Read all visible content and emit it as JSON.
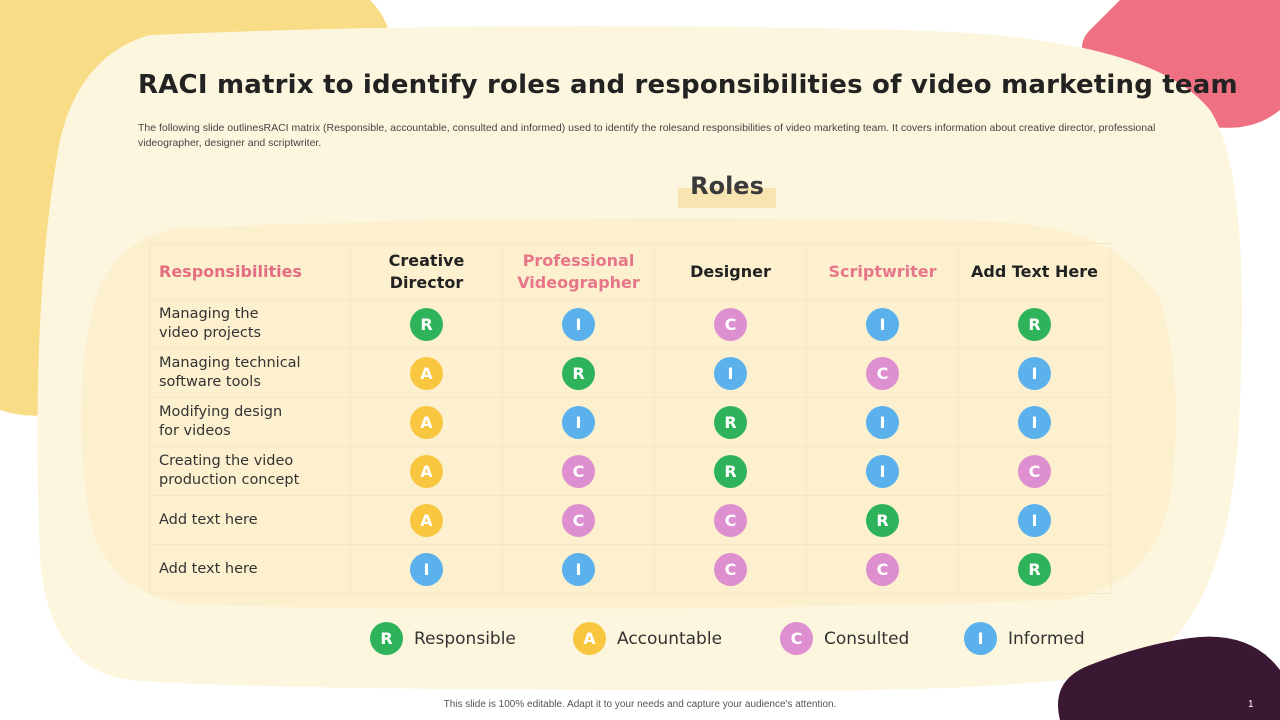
{
  "colors": {
    "responsible": "#2fb35a",
    "accountable": "#f9c640",
    "consulted": "#dd8fd0",
    "informed": "#5ab1ec",
    "accent_pink": "#e8768a",
    "cream": "#fdf6df",
    "yellow_blob": "#f9dc86",
    "pink_blob": "#ef7082",
    "dark_blob": "#3a1833"
  },
  "slide": {
    "title": "RACI matrix to identify roles and responsibilities of video marketing team",
    "subtitle": "The following slide outlinesRACI matrix (Responsible, accountable, consulted and informed) used to identify the rolesand responsibilities of video marketing team. It covers information about creative director, professional videographer, designer and scriptwriter.",
    "roles_heading": "Roles",
    "footer": "This slide is 100% editable. Adapt it to your needs and capture your audience's attention.",
    "page_number": "1"
  },
  "matrix": {
    "responsibilities_header": "Responsibilities",
    "columns": [
      {
        "label": "Creative\nDirector",
        "accent": false
      },
      {
        "label": "Professional\nVideographer",
        "accent": true
      },
      {
        "label": "Designer",
        "accent": false
      },
      {
        "label": "Scriptwriter",
        "accent": true
      },
      {
        "label": "Add Text Here",
        "accent": false
      }
    ],
    "rows": [
      {
        "task": "Managing the\nvideo projects",
        "cells": [
          "R",
          "I",
          "C",
          "I",
          "R"
        ]
      },
      {
        "task": "Managing technical\nsoftware tools",
        "cells": [
          "A",
          "R",
          "I",
          "C",
          "I"
        ]
      },
      {
        "task": "Modifying design\nfor videos",
        "cells": [
          "A",
          "I",
          "R",
          "I",
          "I"
        ]
      },
      {
        "task": "Creating the video\nproduction concept",
        "cells": [
          "A",
          "C",
          "R",
          "I",
          "C"
        ]
      },
      {
        "task": "Add text here",
        "cells": [
          "A",
          "C",
          "C",
          "R",
          "I"
        ]
      },
      {
        "task": "Add text here",
        "cells": [
          "I",
          "I",
          "C",
          "C",
          "R"
        ]
      }
    ]
  },
  "legend": [
    {
      "letter": "R",
      "label": "Responsible"
    },
    {
      "letter": "A",
      "label": "Accountable"
    },
    {
      "letter": "C",
      "label": "Consulted"
    },
    {
      "letter": "I",
      "label": "Informed"
    }
  ]
}
